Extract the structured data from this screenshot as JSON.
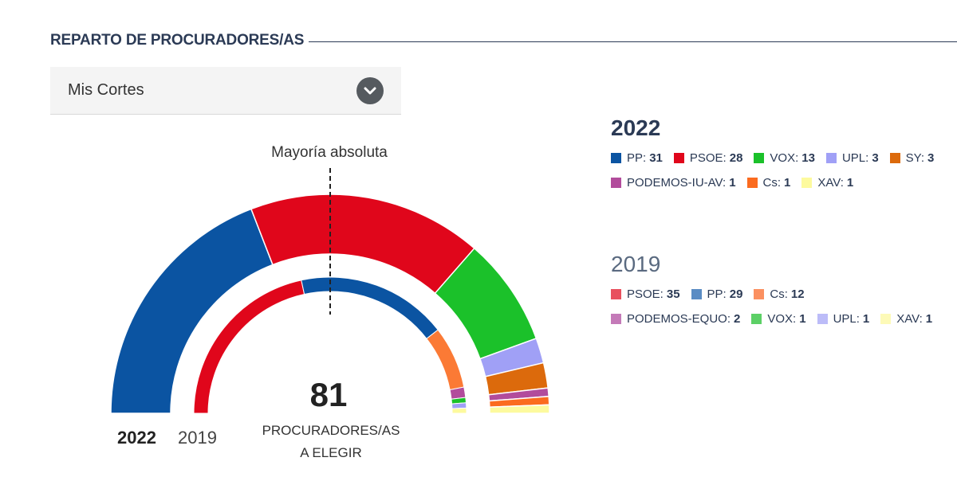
{
  "header": {
    "title": "REPARTO DE PROCURADORES/AS"
  },
  "dropdown": {
    "selected": "Mis Cortes",
    "icon": "chevron-down-icon"
  },
  "center": {
    "total": "81",
    "line1": "PROCURADORES/AS",
    "line2": "A ELEGIR"
  },
  "majority_label": "Mayoría absoluta",
  "years": {
    "current": "2022",
    "previous": "2019"
  },
  "chart_data": {
    "type": "parliament-semicircle",
    "total_seats": 81,
    "majority_marker": "Mayoría absoluta",
    "rings": [
      {
        "year": "2022",
        "ring": "outer",
        "parties": [
          {
            "name": "PP",
            "label": "PP:",
            "seats": 31,
            "color": "#0b54a2"
          },
          {
            "name": "PSOE",
            "label": "PSOE:",
            "seats": 28,
            "color": "#e0061b"
          },
          {
            "name": "VOX",
            "label": "VOX:",
            "seats": 13,
            "color": "#1bc12a"
          },
          {
            "name": "UPL",
            "label": "UPL:",
            "seats": 3,
            "color": "#a0a0f6"
          },
          {
            "name": "SY",
            "label": "SY:",
            "seats": 3,
            "color": "#dc6a0c"
          },
          {
            "name": "PODEMOS-IU-AV",
            "label": "PODEMOS-IU-AV:",
            "seats": 1,
            "color": "#b24c9c"
          },
          {
            "name": "Cs",
            "label": "Cs:",
            "seats": 1,
            "color": "#fb6b1f"
          },
          {
            "name": "XAV",
            "label": "XAV:",
            "seats": 1,
            "color": "#fdfa9e"
          }
        ]
      },
      {
        "year": "2019",
        "ring": "inner",
        "parties": [
          {
            "name": "PSOE",
            "label": "PSOE:",
            "seats": 35,
            "color": "#e0061b",
            "legend_color": "#e8505e"
          },
          {
            "name": "PP",
            "label": "PP:",
            "seats": 29,
            "color": "#0b54a2",
            "legend_color": "#5a8cc4"
          },
          {
            "name": "Cs",
            "label": "Cs:",
            "seats": 12,
            "color": "#fb7a35",
            "legend_color": "#fb9060"
          },
          {
            "name": "PODEMOS-EQUO",
            "label": "PODEMOS-EQUO:",
            "seats": 2,
            "color": "#b24c9c",
            "legend_color": "#c47ab8"
          },
          {
            "name": "VOX",
            "label": "VOX:",
            "seats": 1,
            "color": "#1bc12a",
            "legend_color": "#5cd066"
          },
          {
            "name": "UPL",
            "label": "UPL:",
            "seats": 1,
            "color": "#a0a0f6",
            "legend_color": "#bcbcf8"
          },
          {
            "name": "XAV",
            "label": "XAV:",
            "seats": 1,
            "color": "#fdfa9e",
            "legend_color": "#fdfab8"
          }
        ]
      }
    ]
  }
}
